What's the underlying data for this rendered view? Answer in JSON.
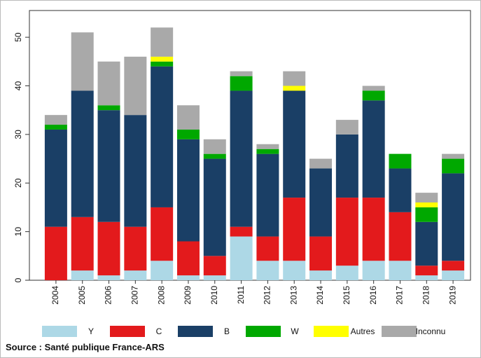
{
  "chart_data": {
    "type": "stacked-bar",
    "categories": [
      "2004",
      "2005",
      "2006",
      "2007",
      "2008",
      "2009",
      "2010",
      "2011",
      "2012",
      "2013",
      "2014",
      "2015",
      "2016",
      "2017",
      "2018",
      "2019"
    ],
    "series": [
      {
        "name": "Y",
        "color": "#add8e6",
        "values": [
          0,
          2,
          1,
          2,
          4,
          1,
          1,
          9,
          4,
          4,
          2,
          3,
          4,
          4,
          1,
          2
        ]
      },
      {
        "name": "C",
        "color": "#e31a1c",
        "values": [
          11,
          11,
          11,
          9,
          11,
          7,
          4,
          2,
          5,
          13,
          7,
          14,
          13,
          10,
          2,
          2
        ]
      },
      {
        "name": "B",
        "color": "#1a3f66",
        "values": [
          20,
          26,
          23,
          23,
          29,
          21,
          20,
          28,
          17,
          22,
          14,
          13,
          20,
          9,
          9,
          18
        ]
      },
      {
        "name": "W",
        "color": "#00a800",
        "values": [
          1,
          0,
          1,
          0,
          1,
          2,
          1,
          3,
          1,
          0,
          0,
          0,
          2,
          3,
          3,
          3
        ]
      },
      {
        "name": "Autres",
        "color": "#ffff00",
        "values": [
          0,
          0,
          0,
          0,
          1,
          0,
          0,
          0,
          0,
          1,
          0,
          0,
          0,
          0,
          1,
          0
        ]
      },
      {
        "name": "Inconnu",
        "color": "#a9a9a9",
        "values": [
          2,
          12,
          9,
          12,
          6,
          5,
          3,
          1,
          1,
          3,
          2,
          3,
          1,
          0,
          2,
          1
        ]
      }
    ],
    "ylim": [
      0,
      55.5
    ],
    "yticks": [
      0,
      10,
      20,
      30,
      40,
      50
    ],
    "source": "Source : Santé publique France-ARS"
  }
}
